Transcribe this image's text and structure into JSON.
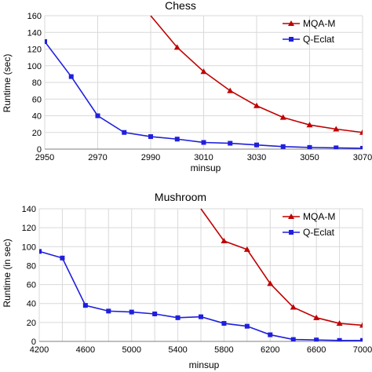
{
  "chart_data": [
    {
      "type": "line",
      "title": "Chess",
      "xlabel": "minsup",
      "ylabel": "Runtime (sec)",
      "xlim": [
        2950,
        3070
      ],
      "ylim": [
        0,
        160
      ],
      "xticks": [
        2950,
        2970,
        2990,
        3010,
        3030,
        3050,
        3070
      ],
      "yticks": [
        0,
        20,
        40,
        60,
        80,
        100,
        120,
        140,
        160
      ],
      "grid": true,
      "legend": "top-right",
      "series": [
        {
          "name": "MQA-M",
          "color": "#c00000",
          "marker": "triangle",
          "points": [
            [
              2990,
              160
            ],
            [
              3000,
              122
            ],
            [
              3010,
              93
            ],
            [
              3020,
              70
            ],
            [
              3030,
              52
            ],
            [
              3040,
              38
            ],
            [
              3050,
              29
            ],
            [
              3060,
              24
            ],
            [
              3070,
              20
            ]
          ]
        },
        {
          "name": "Q-Eclat",
          "color": "#1f1fdd",
          "marker": "square",
          "points": [
            [
              2950,
              129
            ],
            [
              2960,
              87
            ],
            [
              2970,
              40
            ],
            [
              2980,
              20
            ],
            [
              2990,
              15
            ],
            [
              3000,
              12
            ],
            [
              3010,
              8
            ],
            [
              3020,
              7
            ],
            [
              3030,
              5
            ],
            [
              3040,
              3
            ],
            [
              3050,
              2
            ],
            [
              3060,
              1.5
            ],
            [
              3070,
              1
            ]
          ]
        }
      ]
    },
    {
      "type": "line",
      "title": "Mushroom",
      "xlabel": "minsup",
      "ylabel": "Runtime (in sec)",
      "xlim": [
        4200,
        7000
      ],
      "ylim": [
        0,
        140
      ],
      "xticks": [
        4200,
        4600,
        5000,
        5400,
        5800,
        6200,
        6600,
        7000
      ],
      "xtick_labels": [
        "4200",
        "4600",
        "5000",
        "5400",
        "5800",
        "6200",
        "6600",
        "7000"
      ],
      "xgrid_step": 200,
      "yticks": [
        0,
        20,
        40,
        60,
        80,
        100,
        120,
        140
      ],
      "grid": true,
      "legend": "top-right",
      "series": [
        {
          "name": "MQA-M",
          "color": "#c00000",
          "marker": "triangle",
          "points": [
            [
              5600,
              140
            ],
            [
              5800,
              106
            ],
            [
              6000,
              97
            ],
            [
              6200,
              61
            ],
            [
              6400,
              36
            ],
            [
              6600,
              25
            ],
            [
              6800,
              19
            ],
            [
              7000,
              17
            ]
          ]
        },
        {
          "name": "Q-Eclat",
          "color": "#1f1fdd",
          "marker": "square",
          "points": [
            [
              4200,
              95
            ],
            [
              4400,
              88
            ],
            [
              4600,
              38
            ],
            [
              4800,
              32
            ],
            [
              5000,
              31
            ],
            [
              5200,
              29
            ],
            [
              5400,
              25
            ],
            [
              5600,
              26
            ],
            [
              5800,
              19
            ],
            [
              6000,
              16
            ],
            [
              6200,
              7
            ],
            [
              6400,
              2
            ],
            [
              6600,
              1.5
            ],
            [
              6800,
              1
            ],
            [
              7000,
              1
            ]
          ]
        }
      ]
    }
  ]
}
